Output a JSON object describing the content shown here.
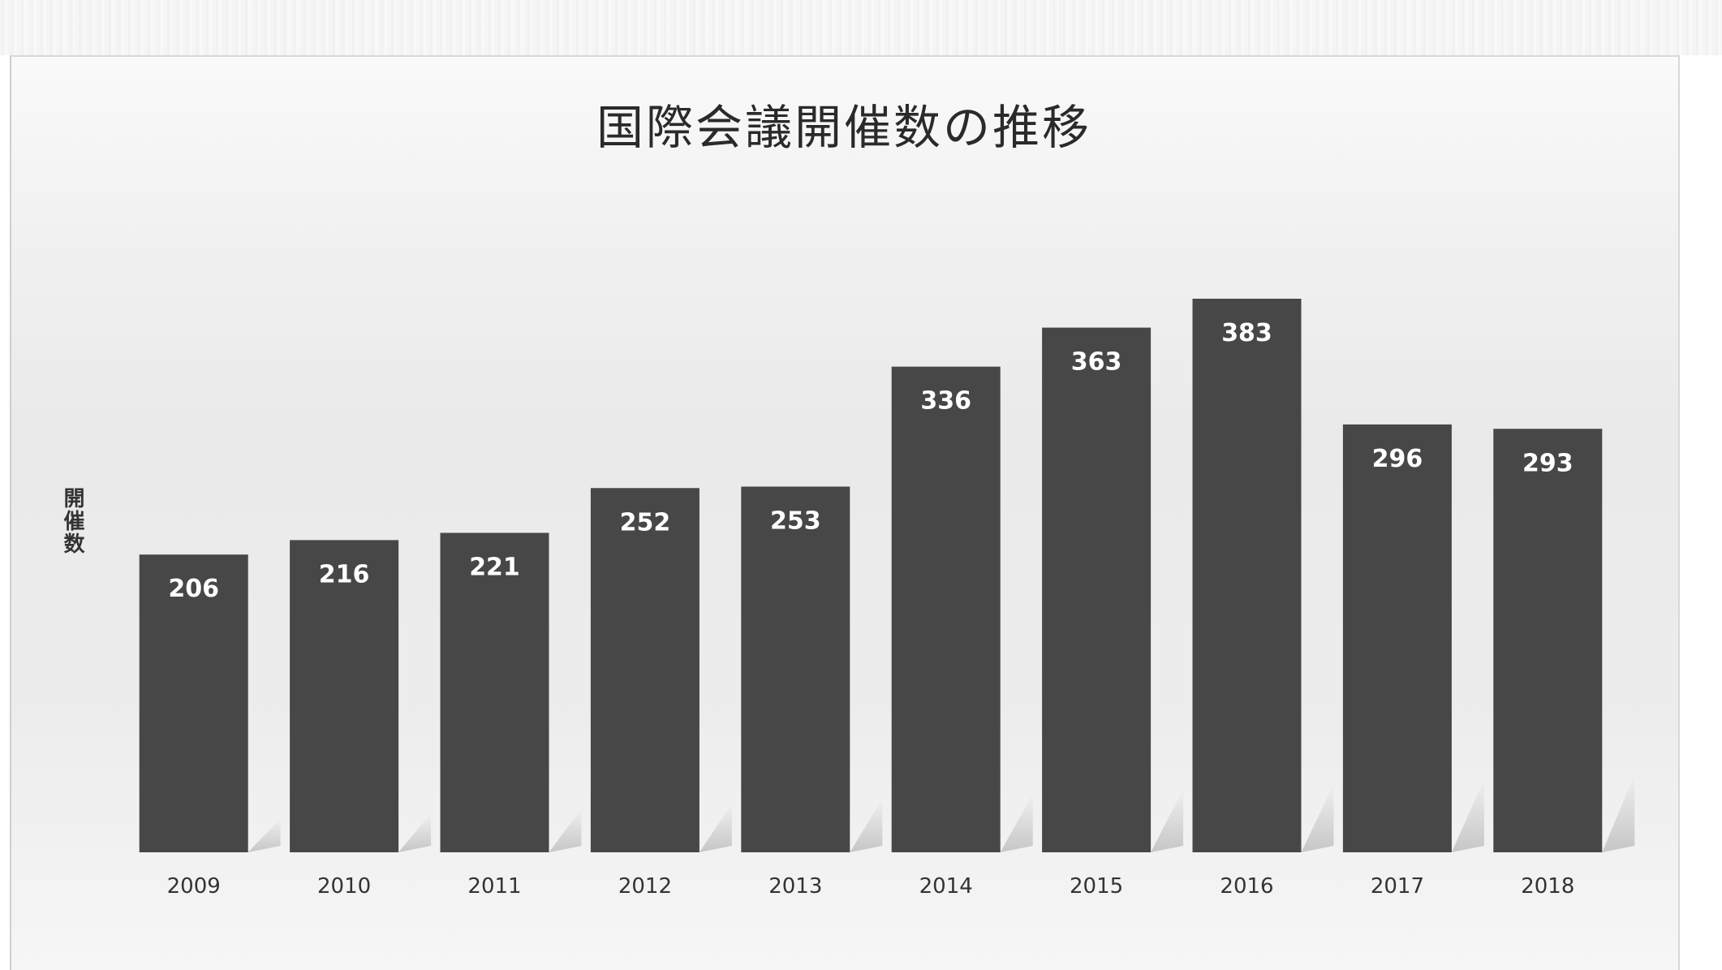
{
  "chart_data": {
    "type": "bar",
    "title": "国際会議開催数の推移",
    "xlabel": "",
    "ylabel": "開催数",
    "categories": [
      "2009",
      "2010",
      "2011",
      "2012",
      "2013",
      "2014",
      "2015",
      "2016",
      "2017",
      "2018"
    ],
    "values": [
      206,
      216,
      221,
      252,
      253,
      336,
      363,
      383,
      296,
      293
    ],
    "ylim": [
      0,
      383
    ],
    "grid": false,
    "legend": "none",
    "bar_color": "#474747",
    "label_color": "#ffffff",
    "tick_color": "#333333"
  }
}
